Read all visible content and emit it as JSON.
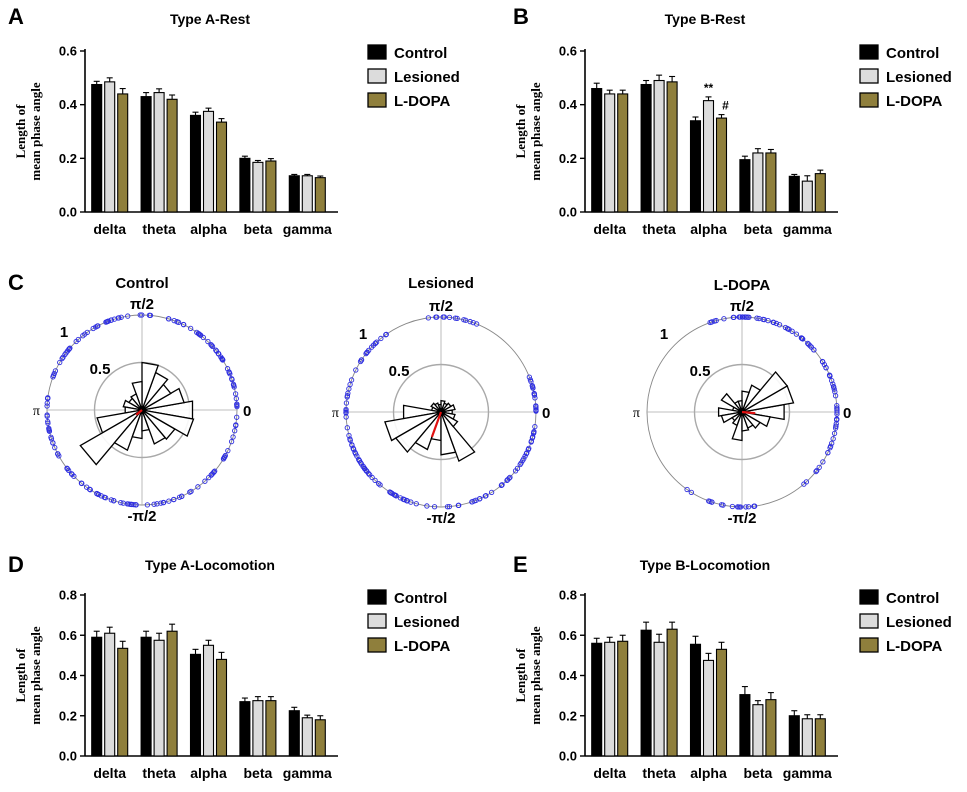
{
  "colors": {
    "control": "#000000",
    "lesioned": "#dcdcdc",
    "ldopa": "#8f7f3c",
    "dots": "#2f2fe0",
    "mean_vector": "#e01010",
    "inner_ring": "#a9a9a9"
  },
  "chart_data": [
    {
      "panel": "A",
      "type": "bar",
      "title": "Type A-Rest",
      "ylabel_line1": "Length of",
      "ylabel_line2": "mean phase angle",
      "ylim": [
        0,
        0.6
      ],
      "yticks": [
        "0.0",
        "0.2",
        "0.4",
        "0.6"
      ],
      "categories": [
        "delta",
        "theta",
        "alpha",
        "beta",
        "gamma"
      ],
      "legend": [
        "Control",
        "Lesioned",
        "L-DOPA"
      ],
      "series": [
        {
          "name": "Control",
          "values": [
            0.475,
            0.43,
            0.36,
            0.2,
            0.135
          ],
          "errors": [
            0.012,
            0.015,
            0.012,
            0.008,
            0.005
          ]
        },
        {
          "name": "Lesioned",
          "values": [
            0.485,
            0.445,
            0.375,
            0.185,
            0.135
          ],
          "errors": [
            0.015,
            0.014,
            0.012,
            0.007,
            0.005
          ]
        },
        {
          "name": "L-DOPA",
          "values": [
            0.44,
            0.42,
            0.335,
            0.19,
            0.128
          ],
          "errors": [
            0.02,
            0.016,
            0.013,
            0.009,
            0.006
          ]
        }
      ],
      "annotations": []
    },
    {
      "panel": "B",
      "type": "bar",
      "title": "Type B-Rest",
      "ylabel_line1": "Length of",
      "ylabel_line2": "mean phase angle",
      "ylim": [
        0,
        0.6
      ],
      "yticks": [
        "0.0",
        "0.2",
        "0.4",
        "0.6"
      ],
      "categories": [
        "delta",
        "theta",
        "alpha",
        "beta",
        "gamma"
      ],
      "legend": [
        "Control",
        "Lesioned",
        "L-DOPA"
      ],
      "series": [
        {
          "name": "Control",
          "values": [
            0.46,
            0.475,
            0.34,
            0.195,
            0.133
          ],
          "errors": [
            0.02,
            0.015,
            0.014,
            0.013,
            0.007
          ]
        },
        {
          "name": "Lesioned",
          "values": [
            0.44,
            0.49,
            0.415,
            0.22,
            0.115
          ],
          "errors": [
            0.014,
            0.02,
            0.014,
            0.016,
            0.02
          ]
        },
        {
          "name": "L-DOPA",
          "values": [
            0.44,
            0.485,
            0.35,
            0.22,
            0.143
          ],
          "errors": [
            0.014,
            0.02,
            0.013,
            0.013,
            0.013
          ]
        }
      ],
      "annotations": [
        {
          "text": "**",
          "category": 2,
          "series": 1
        },
        {
          "text": "#",
          "category": 2,
          "series": 2
        }
      ]
    },
    {
      "panel": "D",
      "type": "bar",
      "title": "Type A-Locomotion",
      "ylabel_line1": "Length of",
      "ylabel_line2": "mean phase angle",
      "ylim": [
        0,
        0.8
      ],
      "yticks": [
        "0.0",
        "0.2",
        "0.4",
        "0.6",
        "0.8"
      ],
      "categories": [
        "delta",
        "theta",
        "alpha",
        "beta",
        "gamma"
      ],
      "legend": [
        "Control",
        "Lesioned",
        "L-DOPA"
      ],
      "series": [
        {
          "name": "Control",
          "values": [
            0.59,
            0.59,
            0.505,
            0.27,
            0.225
          ],
          "errors": [
            0.03,
            0.03,
            0.025,
            0.018,
            0.017
          ]
        },
        {
          "name": "Lesioned",
          "values": [
            0.61,
            0.575,
            0.55,
            0.275,
            0.19
          ],
          "errors": [
            0.03,
            0.035,
            0.025,
            0.02,
            0.013
          ]
        },
        {
          "name": "L-DOPA",
          "values": [
            0.535,
            0.62,
            0.48,
            0.275,
            0.18
          ],
          "errors": [
            0.035,
            0.035,
            0.035,
            0.02,
            0.02
          ]
        }
      ],
      "annotations": []
    },
    {
      "panel": "E",
      "type": "bar",
      "title": "Type B-Locomotion",
      "ylabel_line1": "Length of",
      "ylabel_line2": "mean phase angle",
      "ylim": [
        0,
        0.8
      ],
      "yticks": [
        "0.0",
        "0.2",
        "0.4",
        "0.6",
        "0.8"
      ],
      "categories": [
        "delta",
        "theta",
        "alpha",
        "beta",
        "gamma"
      ],
      "legend": [
        "Control",
        "Lesioned",
        "L-DOPA"
      ],
      "series": [
        {
          "name": "Control",
          "values": [
            0.56,
            0.625,
            0.555,
            0.305,
            0.2
          ],
          "errors": [
            0.025,
            0.04,
            0.04,
            0.04,
            0.025
          ]
        },
        {
          "name": "Lesioned",
          "values": [
            0.565,
            0.565,
            0.475,
            0.255,
            0.185
          ],
          "errors": [
            0.025,
            0.04,
            0.035,
            0.02,
            0.02
          ]
        },
        {
          "name": "L-DOPA",
          "values": [
            0.57,
            0.63,
            0.53,
            0.28,
            0.185
          ],
          "errors": [
            0.03,
            0.035,
            0.035,
            0.035,
            0.02
          ]
        }
      ],
      "annotations": []
    },
    {
      "panel": "C",
      "type": "polar",
      "title": "Control",
      "labels": {
        "top": "π/2",
        "bottom": "-π/2",
        "left": "π",
        "right": "0",
        "outer": "1",
        "inner": "0.5"
      },
      "rose": [
        {
          "angle_deg": 0,
          "length": 0.54
        },
        {
          "angle_deg": 20,
          "length": 0.45
        },
        {
          "angle_deg": 40,
          "length": 0.35
        },
        {
          "angle_deg": 60,
          "length": 0.42
        },
        {
          "angle_deg": 80,
          "length": 0.5
        },
        {
          "angle_deg": 100,
          "length": 0.3
        },
        {
          "angle_deg": 120,
          "length": 0.18
        },
        {
          "angle_deg": 140,
          "length": 0.16
        },
        {
          "angle_deg": 160,
          "length": 0.2
        },
        {
          "angle_deg": 180,
          "length": 0.18
        },
        {
          "angle_deg": 200,
          "length": 0.48
        },
        {
          "angle_deg": 220,
          "length": 0.75
        },
        {
          "angle_deg": 240,
          "length": 0.45
        },
        {
          "angle_deg": 260,
          "length": 0.3
        },
        {
          "angle_deg": 280,
          "length": 0.22
        },
        {
          "angle_deg": 300,
          "length": 0.38
        },
        {
          "angle_deg": 320,
          "length": 0.4
        },
        {
          "angle_deg": 340,
          "length": 0.55
        }
      ],
      "mean_vector": {
        "angle_deg": 220,
        "length": 0.08
      },
      "dot_gaps_deg": []
    },
    {
      "panel": "C2",
      "type": "polar",
      "title": "Lesioned",
      "labels": {
        "top": "π/2",
        "bottom": "-π/2",
        "left": "π",
        "right": "0",
        "outer": "1",
        "inner": "0.5"
      },
      "rose": [
        {
          "angle_deg": 0,
          "length": 0.12
        },
        {
          "angle_deg": 20,
          "length": 0.15
        },
        {
          "angle_deg": 40,
          "length": 0.12
        },
        {
          "angle_deg": 60,
          "length": 0.1
        },
        {
          "angle_deg": 80,
          "length": 0.12
        },
        {
          "angle_deg": 100,
          "length": 0.08
        },
        {
          "angle_deg": 120,
          "length": 0.1
        },
        {
          "angle_deg": 140,
          "length": 0.12
        },
        {
          "angle_deg": 160,
          "length": 0.1
        },
        {
          "angle_deg": 180,
          "length": 0.4
        },
        {
          "angle_deg": 200,
          "length": 0.6
        },
        {
          "angle_deg": 220,
          "length": 0.55
        },
        {
          "angle_deg": 240,
          "length": 0.42
        },
        {
          "angle_deg": 260,
          "length": 0.3
        },
        {
          "angle_deg": 280,
          "length": 0.45
        },
        {
          "angle_deg": 300,
          "length": 0.55
        },
        {
          "angle_deg": 320,
          "length": 0.2
        },
        {
          "angle_deg": 340,
          "length": 0.15
        }
      ],
      "mean_vector": {
        "angle_deg": 250,
        "length": 0.28
      },
      "dot_gaps_deg": [
        [
          25,
          60
        ],
        [
          100,
          125
        ]
      ]
    },
    {
      "panel": "C3",
      "type": "polar",
      "title": "L-DOPA",
      "labels": {
        "top": "π/2",
        "bottom": "-π/2",
        "left": "π",
        "right": "0",
        "outer": "1",
        "inner": "0.5"
      },
      "rose": [
        {
          "angle_deg": 0,
          "length": 0.45
        },
        {
          "angle_deg": 20,
          "length": 0.55
        },
        {
          "angle_deg": 40,
          "length": 0.55
        },
        {
          "angle_deg": 60,
          "length": 0.3
        },
        {
          "angle_deg": 80,
          "length": 0.22
        },
        {
          "angle_deg": 100,
          "length": 0.12
        },
        {
          "angle_deg": 120,
          "length": 0.12
        },
        {
          "angle_deg": 140,
          "length": 0.25
        },
        {
          "angle_deg": 160,
          "length": 0.1
        },
        {
          "angle_deg": 180,
          "length": 0.25
        },
        {
          "angle_deg": 200,
          "length": 0.22
        },
        {
          "angle_deg": 220,
          "length": 0.12
        },
        {
          "angle_deg": 240,
          "length": 0.15
        },
        {
          "angle_deg": 260,
          "length": 0.3
        },
        {
          "angle_deg": 280,
          "length": 0.2
        },
        {
          "angle_deg": 300,
          "length": 0.18
        },
        {
          "angle_deg": 320,
          "length": 0.22
        },
        {
          "angle_deg": 340,
          "length": 0.3
        }
      ],
      "mean_vector": {
        "angle_deg": 355,
        "length": 0.14
      },
      "dot_gaps_deg": [
        [
          110,
          230
        ],
        [
          280,
          300
        ]
      ]
    }
  ]
}
